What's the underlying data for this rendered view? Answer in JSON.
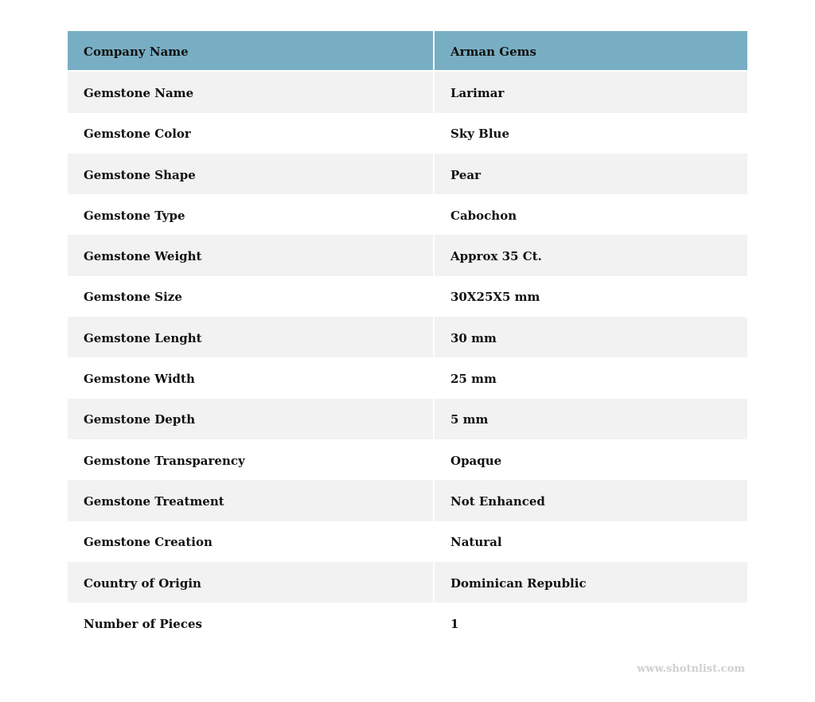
{
  "table": {
    "header": {
      "label": "Company Name",
      "value": "Arman Gems"
    },
    "rows": [
      {
        "label": "Gemstone Name",
        "value": "Larimar"
      },
      {
        "label": "Gemstone Color",
        "value": "Sky Blue"
      },
      {
        "label": "Gemstone Shape",
        "value": "Pear"
      },
      {
        "label": "Gemstone Type",
        "value": "Cabochon"
      },
      {
        "label": "Gemstone Weight",
        "value": "Approx 35 Ct."
      },
      {
        "label": "Gemstone Size",
        "value": "30X25X5 mm"
      },
      {
        "label": "Gemstone Lenght",
        "value": "30 mm"
      },
      {
        "label": "Gemstone Width",
        "value": "25 mm"
      },
      {
        "label": "Gemstone Depth",
        "value": "5 mm"
      },
      {
        "label": "Gemstone Transparency",
        "value": "Opaque"
      },
      {
        "label": "Gemstone Treatment",
        "value": "Not Enhanced"
      },
      {
        "label": "Gemstone Creation",
        "value": "Natural"
      },
      {
        "label": "Country of Origin",
        "value": "Dominican Republic"
      },
      {
        "label": "Number of Pieces",
        "value": "1"
      }
    ]
  },
  "watermark": "www.shotnlist.com",
  "colors": {
    "header_bg": "#78aec3",
    "stripe_bg": "#f2f2f2"
  }
}
